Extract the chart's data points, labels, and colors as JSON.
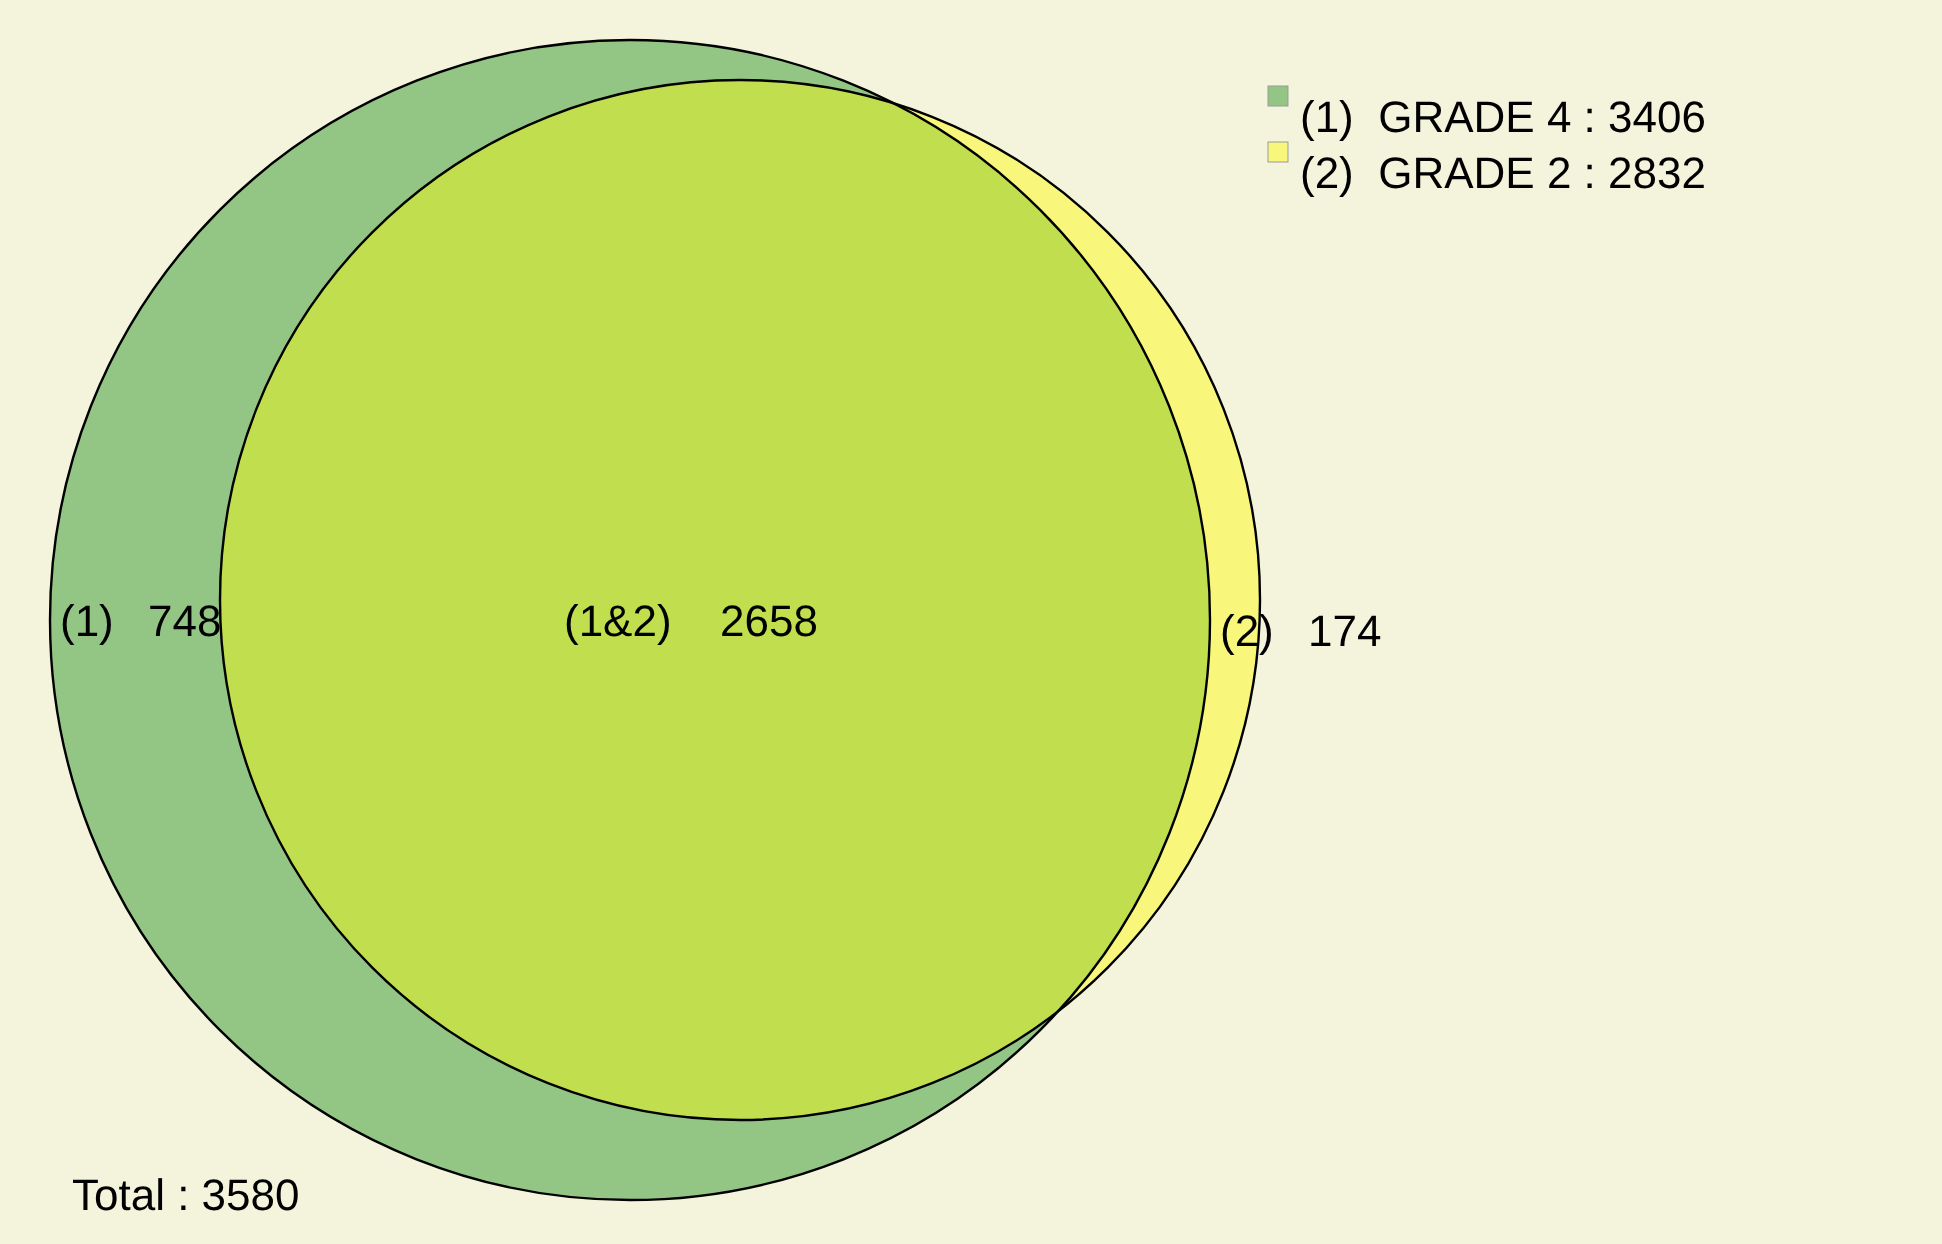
{
  "chart_data": {
    "type": "other",
    "categories": [
      "(1)",
      "(1&2)",
      "(2)"
    ],
    "values": [
      748,
      2658,
      174
    ],
    "data_labels": true,
    "colors": [
      "#93c584",
      "#c0de4e",
      "#f8f77c"
    ],
    "annotations": [
      "(1)  GRADE 4 : 3406",
      "(2)  GRADE 2 : 2832",
      "Total : 3580"
    ]
  }
}
